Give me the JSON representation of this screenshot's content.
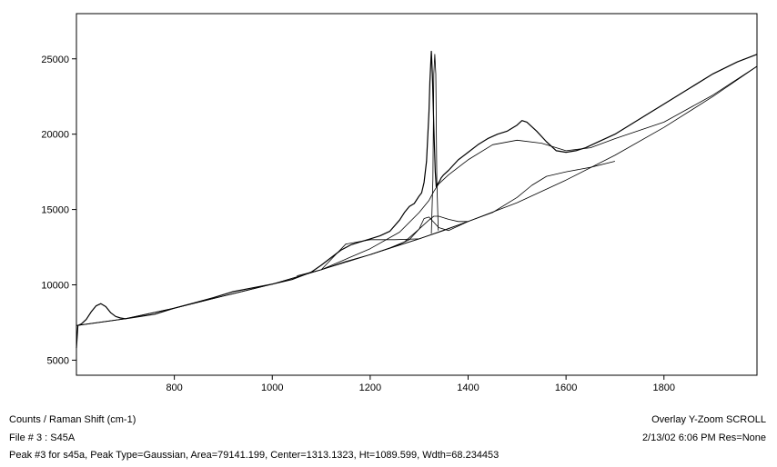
{
  "chart_data": {
    "type": "line",
    "xlim": [
      600,
      1990
    ],
    "ylim": [
      4000,
      28000
    ],
    "xticks": [
      "800",
      "1000",
      "1200",
      "1400",
      "1600",
      "1800"
    ],
    "yticks": [
      "5000",
      "10000",
      "15000",
      "20000",
      "25000"
    ],
    "grid": false,
    "series": [
      {
        "role": "measured",
        "x": [
          600,
          603,
          610,
          620,
          630,
          640,
          650,
          660,
          670,
          680,
          690,
          700,
          720,
          760,
          800,
          840,
          880,
          920,
          960,
          1000,
          1040,
          1080,
          1100,
          1120,
          1140,
          1160,
          1180,
          1200,
          1220,
          1240,
          1260,
          1270,
          1280,
          1290,
          1300,
          1305,
          1310,
          1315,
          1320,
          1322,
          1325,
          1327,
          1330,
          1333,
          1335,
          1338,
          1342,
          1345,
          1350,
          1360,
          1380,
          1400,
          1420,
          1440,
          1460,
          1480,
          1500,
          1510,
          1520,
          1530,
          1540,
          1560,
          1580,
          1600,
          1620,
          1640,
          1660,
          1700,
          1750,
          1800,
          1850,
          1900,
          1950,
          1990
        ],
        "y": [
          5800,
          7300,
          7400,
          7700,
          8200,
          8600,
          8750,
          8550,
          8150,
          7900,
          7800,
          7750,
          7850,
          8050,
          8450,
          8800,
          9150,
          9550,
          9800,
          10050,
          10350,
          10850,
          11300,
          11800,
          12300,
          12650,
          12850,
          13050,
          13250,
          13550,
          14300,
          14800,
          15200,
          15400,
          15900,
          16100,
          16800,
          18200,
          21500,
          23500,
          25500,
          24000,
          20500,
          17500,
          16500,
          16700,
          16900,
          17100,
          17300,
          17600,
          18300,
          18800,
          19300,
          19700,
          20000,
          20200,
          20600,
          20900,
          20800,
          20500,
          20200,
          19500,
          18900,
          18800,
          18900,
          19100,
          19400,
          20000,
          21000,
          22000,
          23000,
          24000,
          24800,
          25300
        ]
      },
      {
        "role": "baseline",
        "x": [
          600,
          700,
          800,
          900,
          1000,
          1100,
          1200,
          1300,
          1400,
          1500,
          1600,
          1700,
          1800,
          1900,
          1990
        ],
        "y": [
          7300,
          7750,
          8450,
          9250,
          10050,
          11000,
          12000,
          13050,
          14200,
          15450,
          16950,
          18600,
          20450,
          22500,
          24500
        ]
      },
      {
        "role": "fit-total",
        "x": [
          600,
          700,
          800,
          900,
          1000,
          1100,
          1200,
          1260,
          1300,
          1320,
          1330,
          1340,
          1360,
          1400,
          1450,
          1500,
          1550,
          1600,
          1650,
          1700,
          1800,
          1900,
          1990
        ],
        "y": [
          7300,
          7750,
          8450,
          9250,
          10050,
          11000,
          12400,
          13500,
          14800,
          15600,
          16200,
          16700,
          17300,
          18300,
          19300,
          19600,
          19400,
          18900,
          19100,
          19700,
          20800,
          22600,
          24500
        ]
      },
      {
        "role": "peak-broad",
        "x": [
          1050,
          1100,
          1150,
          1200,
          1250,
          1300,
          1350,
          1400,
          1450,
          1500,
          1530,
          1560,
          1600,
          1650,
          1700
        ],
        "y": [
          10600,
          11000,
          11550,
          12000,
          12550,
          13050,
          13600,
          14200,
          14800,
          15800,
          16600,
          17200,
          17500,
          17800,
          18200
        ]
      },
      {
        "role": "peak-d",
        "x": [
          1200,
          1240,
          1270,
          1300,
          1320,
          1330,
          1340,
          1360,
          1380,
          1400
        ],
        "y": [
          12000,
          12450,
          12850,
          13700,
          14300,
          14550,
          14550,
          14350,
          14200,
          14200
        ]
      },
      {
        "role": "peak-g",
        "x": [
          1250,
          1280,
          1300,
          1310,
          1320,
          1340,
          1360,
          1400
        ],
        "y": [
          12550,
          13000,
          13700,
          14400,
          14500,
          13800,
          13600,
          14200
        ]
      },
      {
        "role": "peak-sharp",
        "x": [
          1325,
          1328,
          1330,
          1332,
          1334,
          1336,
          1339
        ],
        "y": [
          13400,
          17000,
          24000,
          25300,
          24000,
          17000,
          13600
        ]
      },
      {
        "role": "peak-shoulder",
        "x": [
          1100,
          1150,
          1200,
          1250,
          1300
        ],
        "y": [
          11000,
          12700,
          13000,
          13000,
          13050
        ]
      }
    ]
  },
  "footer": {
    "units": "Counts / Raman Shift (cm-1)",
    "mode": "Overlay Y-Zoom SCROLL",
    "file": "File # 3 : S45A",
    "datetime": "2/13/02  6:06 PM  Res=None",
    "peak_info": "Peak #3 for s45a, Peak Type=Gaussian, Area=79141.199, Center=1313.1323, Ht=1089.599, Wdth=68.234453"
  }
}
